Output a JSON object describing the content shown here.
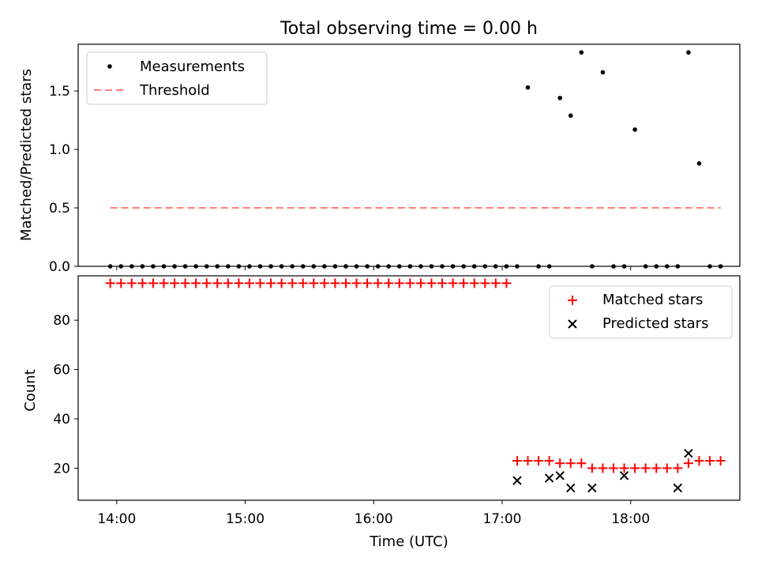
{
  "figure": {
    "title": "Total observing time = 0.00 h"
  },
  "chart_data": [
    {
      "type": "scatter",
      "ylabel": "Matched/Predicted stars",
      "ylim": [
        0,
        1.9
      ],
      "xlim": [
        "13:42",
        "18:51"
      ],
      "x_ticks": [
        "14:00",
        "15:00",
        "16:00",
        "17:00",
        "18:00"
      ],
      "y_ticks": [
        "0.0",
        "0.5",
        "1.0",
        "1.5"
      ],
      "legend_position": "upper-left",
      "legend": [
        "Measurements",
        "Threshold"
      ],
      "series": [
        {
          "name": "Measurements",
          "marker": "dot",
          "color": "#000000",
          "x": [
            "13:57",
            "14:02",
            "14:07",
            "14:12",
            "14:17",
            "14:22",
            "14:27",
            "14:32",
            "14:37",
            "14:42",
            "14:47",
            "14:52",
            "14:57",
            "15:02",
            "15:07",
            "15:12",
            "15:17",
            "15:22",
            "15:27",
            "15:32",
            "15:37",
            "15:42",
            "15:47",
            "15:52",
            "15:57",
            "16:02",
            "16:07",
            "16:12",
            "16:17",
            "16:22",
            "16:27",
            "16:32",
            "16:37",
            "16:42",
            "16:47",
            "16:52",
            "16:57",
            "17:02",
            "17:07",
            "17:12",
            "17:17",
            "17:22",
            "17:27",
            "17:32",
            "17:37",
            "17:42",
            "17:47",
            "17:52",
            "17:57",
            "18:02",
            "18:07",
            "18:12",
            "18:17",
            "18:22",
            "18:27",
            "18:32",
            "18:37",
            "18:42"
          ],
          "y": [
            0,
            0,
            0,
            0,
            0,
            0,
            0,
            0,
            0,
            0,
            0,
            0,
            0,
            0,
            0,
            0,
            0,
            0,
            0,
            0,
            0,
            0,
            0,
            0,
            0,
            0,
            0,
            0,
            0,
            0,
            0,
            0,
            0,
            0,
            0,
            0,
            0,
            0,
            0,
            1.53,
            0,
            0,
            1.44,
            1.29,
            1.83,
            0,
            1.66,
            0,
            0,
            1.17,
            0,
            0,
            0,
            0,
            1.83,
            0.88,
            0,
            0
          ]
        },
        {
          "name": "Threshold",
          "style": "dashed",
          "color": "#ff7f7f",
          "x": [
            "13:57",
            "18:42"
          ],
          "y": [
            0.5,
            0.5
          ]
        }
      ]
    },
    {
      "type": "scatter",
      "xlabel": "Time (UTC)",
      "ylabel": "Count",
      "ylim": [
        7,
        98
      ],
      "xlim": [
        "13:42",
        "18:51"
      ],
      "x_ticks": [
        "14:00",
        "15:00",
        "16:00",
        "17:00",
        "18:00"
      ],
      "y_ticks": [
        "20",
        "40",
        "60",
        "80"
      ],
      "legend_position": "upper-right",
      "legend": [
        "Matched stars",
        "Predicted stars"
      ],
      "series": [
        {
          "name": "Matched stars",
          "marker": "plus",
          "color": "#ff0000",
          "x": [
            "13:57",
            "14:02",
            "14:07",
            "14:12",
            "14:17",
            "14:22",
            "14:27",
            "14:32",
            "14:37",
            "14:42",
            "14:47",
            "14:52",
            "14:57",
            "15:02",
            "15:07",
            "15:12",
            "15:17",
            "15:22",
            "15:27",
            "15:32",
            "15:37",
            "15:42",
            "15:47",
            "15:52",
            "15:57",
            "16:02",
            "16:07",
            "16:12",
            "16:17",
            "16:22",
            "16:27",
            "16:32",
            "16:37",
            "16:42",
            "16:47",
            "16:52",
            "16:57",
            "17:02",
            "17:07",
            "17:12",
            "17:17",
            "17:22",
            "17:27",
            "17:32",
            "17:37",
            "17:42",
            "17:47",
            "17:52",
            "17:57",
            "18:02",
            "18:07",
            "18:12",
            "18:17",
            "18:22",
            "18:27",
            "18:32",
            "18:37",
            "18:42"
          ],
          "y": [
            95,
            95,
            95,
            95,
            95,
            95,
            95,
            95,
            95,
            95,
            95,
            95,
            95,
            95,
            95,
            95,
            95,
            95,
            95,
            95,
            95,
            95,
            95,
            95,
            95,
            95,
            95,
            95,
            95,
            95,
            95,
            95,
            95,
            95,
            95,
            95,
            95,
            95,
            23,
            23,
            23,
            23,
            22,
            22,
            22,
            20,
            20,
            20,
            20,
            20,
            20,
            20,
            20,
            20,
            22,
            23,
            23,
            23
          ]
        },
        {
          "name": "Predicted stars",
          "marker": "x",
          "color": "#000000",
          "x": [
            "17:07",
            "17:22",
            "17:27",
            "17:32",
            "17:42",
            "17:57",
            "18:22",
            "18:27"
          ],
          "y": [
            15,
            16,
            17,
            12,
            12,
            17,
            12,
            26
          ]
        }
      ]
    }
  ]
}
